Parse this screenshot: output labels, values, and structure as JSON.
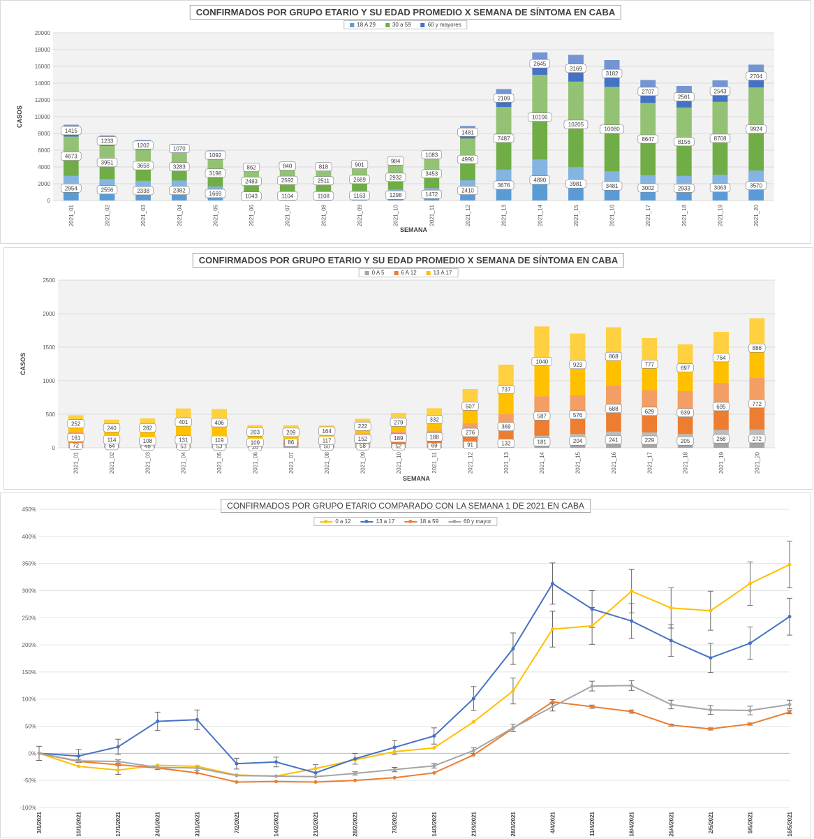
{
  "chart_data": [
    {
      "type": "bar",
      "stacked": true,
      "title": "CONFIRMADOS POR GRUPO ETARIO Y SU EDAD PROMEDIO X SEMANA DE SÍNTOMA EN CABA",
      "xlabel": "SEMANA",
      "ylabel": "CASOS",
      "ylim": [
        0,
        20000
      ],
      "yticks": [
        "0",
        "2000",
        "4000",
        "6000",
        "8000",
        "10000",
        "12000",
        "14000",
        "16000",
        "18000",
        "20000"
      ],
      "grid": true,
      "legend_position": "top",
      "categories": [
        "2021_01",
        "2021_02",
        "2021_03",
        "2021_04",
        "2021_05",
        "2021_06",
        "2021_07",
        "2021_08",
        "2021_09",
        "2021_10",
        "2021_11",
        "2021_12",
        "2021_13",
        "2021_14",
        "2021_15",
        "2021_16",
        "2021_17",
        "2021_18",
        "2021_19",
        "2021_20"
      ],
      "series": [
        {
          "name": "18 A 29",
          "color": "#5b9bd5",
          "values": [
            2954,
            2556,
            2338,
            2382,
            1669,
            1043,
            1104,
            1108,
            1163,
            1298,
            1472,
            2410,
            3676,
            4890,
            3981,
            3481,
            3002,
            2933,
            3063,
            3570
          ]
        },
        {
          "name": "30 a 59",
          "color": "#70ad47",
          "values": [
            4673,
            3951,
            3658,
            3283,
            3198,
            2483,
            2592,
            2511,
            2689,
            2932,
            3453,
            4990,
            7487,
            10106,
            10205,
            10080,
            8647,
            8156,
            8708,
            9924
          ]
        },
        {
          "name": "60 y mayores",
          "color": "#4472c4",
          "values": [
            1415,
            1233,
            1202,
            1070,
            1092,
            862,
            840,
            818,
            901,
            984,
            1083,
            1481,
            2109,
            2645,
            3169,
            3182,
            2707,
            2561,
            2543,
            2704
          ]
        }
      ]
    },
    {
      "type": "bar",
      "stacked": true,
      "title": "CONFIRMADOS POR GRUPO ETARIO Y SU EDAD PROMEDIO X SEMANA DE SÍNTOMA EN CABA",
      "xlabel": "SEMANA",
      "ylabel": "CASOS",
      "ylim": [
        0,
        2500
      ],
      "yticks": [
        "0",
        "500",
        "1000",
        "1500",
        "2000",
        "2500"
      ],
      "grid": true,
      "legend_position": "top",
      "categories": [
        "2021_01",
        "2021_02",
        "2021_03",
        "2021_04",
        "2021_05",
        "2021_06",
        "2021_07",
        "2021_08",
        "2021_09",
        "2021_10",
        "2021_11",
        "2021_12",
        "2021_13",
        "2021_14",
        "2021_15",
        "2021_16",
        "2021_17",
        "2021_18",
        "2021_19",
        "2021_20"
      ],
      "series": [
        {
          "name": "0 A 5",
          "color": "#a5a5a5",
          "values": [
            72,
            64,
            48,
            53,
            53,
            26,
            40,
            50,
            58,
            52,
            69,
            91,
            132,
            181,
            204,
            241,
            229,
            205,
            268,
            272
          ]
        },
        {
          "name": "6 A 12",
          "color": "#ed7d31",
          "values": [
            161,
            114,
            108,
            131,
            119,
            109,
            86,
            117,
            152,
            189,
            188,
            276,
            369,
            587,
            576,
            688,
            629,
            639,
            695,
            772
          ]
        },
        {
          "name": "13 A 17",
          "color": "#ffc000",
          "values": [
            252,
            240,
            282,
            401,
            406,
            203,
            209,
            164,
            222,
            279,
            332,
            507,
            737,
            1040,
            923,
            868,
            777,
            697,
            764,
            886
          ]
        }
      ],
      "visible_labels": [
        "72",
        "64",
        "48",
        "53",
        "53",
        "26",
        "",
        "50",
        "58",
        "52",
        "69",
        "91",
        "132",
        "181",
        "204",
        "241",
        "229",
        "205",
        "268",
        "272"
      ]
    },
    {
      "type": "line",
      "title": "CONFIRMADOS POR GRUPO ETARIO COMPARADO CON LA SEMANA 1 DE 2021 EN CABA",
      "xlabel": "",
      "ylabel": "",
      "ylim": [
        -100,
        450
      ],
      "yticks": [
        "-100%",
        "-50%",
        "0%",
        "50%",
        "100%",
        "150%",
        "200%",
        "250%",
        "300%",
        "350%",
        "400%",
        "450%"
      ],
      "grid": true,
      "legend_position": "top",
      "categories": [
        "3/1/2021",
        "10/1/2021",
        "17/1/2021",
        "24/1/2021",
        "31/1/2021",
        "7/2/2021",
        "14/2/2021",
        "21/2/2021",
        "28/2/2021",
        "7/3/2021",
        "14/3/2021",
        "21/3/2021",
        "28/3/2021",
        "4/4/2021",
        "11/4/2021",
        "18/4/2021",
        "25/4/2021",
        "2/5/2021",
        "9/5/2021",
        "16/5/2021"
      ],
      "series": [
        {
          "name": "0 a 12",
          "color": "#ffc000",
          "values": [
            0,
            -24,
            -31,
            -22,
            -24,
            -40,
            -42,
            -28,
            -12,
            3,
            10,
            58,
            115,
            229,
            235,
            299,
            268,
            263,
            313,
            348
          ],
          "error": [
            0,
            0,
            8,
            0,
            0,
            0,
            0,
            7,
            0,
            0,
            0,
            0,
            24,
            33,
            34,
            40,
            37,
            36,
            40,
            43
          ]
        },
        {
          "name": "13 a 17",
          "color": "#4472c4",
          "values": [
            0,
            -5,
            12,
            59,
            62,
            -19,
            -16,
            -36,
            -10,
            11,
            32,
            101,
            193,
            313,
            266,
            244,
            208,
            176,
            203,
            252
          ],
          "error": [
            13,
            12,
            14,
            17,
            18,
            10,
            9,
            0,
            10,
            13,
            15,
            22,
            29,
            38,
            34,
            32,
            29,
            27,
            30,
            34
          ]
        },
        {
          "name": "18 a 59",
          "color": "#ed7d31",
          "values": [
            0,
            -15,
            -21,
            -27,
            -36,
            -53,
            -52,
            -53,
            -50,
            -45,
            -36,
            -3,
            46,
            95,
            86,
            77,
            52,
            45,
            54,
            76
          ],
          "error": [
            0,
            0,
            0,
            0,
            0,
            0,
            0,
            0,
            0,
            0,
            0,
            0,
            0,
            4,
            3,
            3,
            2,
            2,
            2,
            3
          ]
        },
        {
          "name": "60 y mayor",
          "color": "#a5a5a5",
          "values": [
            0,
            -14,
            -15,
            -26,
            -27,
            -41,
            -42,
            -43,
            -37,
            -30,
            -23,
            5,
            47,
            86,
            124,
            125,
            90,
            80,
            79,
            90
          ],
          "error": [
            0,
            3,
            3,
            4,
            4,
            0,
            0,
            0,
            3,
            4,
            4,
            5,
            7,
            8,
            9,
            9,
            8,
            8,
            8,
            8
          ]
        }
      ]
    }
  ]
}
